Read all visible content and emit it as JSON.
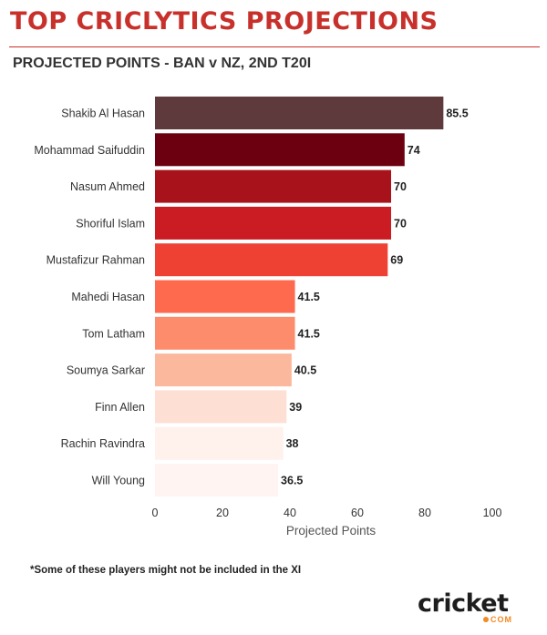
{
  "header": {
    "title": "TOP CRICLYTICS PROJECTIONS",
    "subtitle": "PROJECTED POINTS - BAN v NZ, 2ND T20I"
  },
  "chart_data": {
    "type": "bar",
    "orientation": "horizontal",
    "categories": [
      "Shakib Al Hasan",
      "Mohammad Saifuddin",
      "Nasum Ahmed",
      "Shoriful Islam",
      "Mustafizur Rahman",
      "Mahedi Hasan",
      "Tom Latham",
      "Soumya Sarkar",
      "Finn Allen",
      "Rachin Ravindra",
      "Will Young"
    ],
    "values": [
      85.5,
      74,
      70,
      70,
      69,
      41.5,
      41.5,
      40.5,
      39,
      38,
      36.5
    ],
    "data_labels": [
      "85.5",
      "74",
      "70",
      "70",
      "69",
      "41.5",
      "41.5",
      "40.5",
      "39",
      "38",
      "36.5"
    ],
    "colors": [
      "#5e3a3c",
      "#6d0010",
      "#a8121a",
      "#ca1c22",
      "#ee4134",
      "#fd6a4e",
      "#fd8c6d",
      "#fcb89d",
      "#fddfd3",
      "#fff1ec",
      "#fff4f1"
    ],
    "xlabel": "Projected Points",
    "ylabel": "",
    "xlim": [
      0,
      100
    ],
    "xticks": [
      0,
      20,
      40,
      60,
      80,
      100
    ],
    "xtick_labels": [
      "0",
      "20",
      "40",
      "60",
      "80",
      "100"
    ],
    "grid": false,
    "legend": "none"
  },
  "footnote": "*Some of these players might not be included in the XI",
  "logo": {
    "text": "cricket",
    "sub": "COM",
    "accent": "#f08a24"
  }
}
